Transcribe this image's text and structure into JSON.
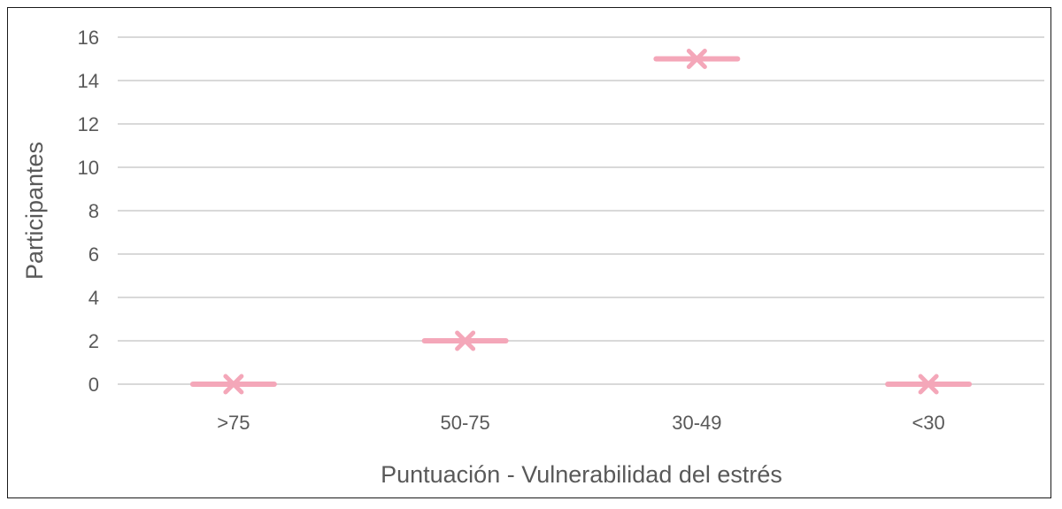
{
  "chart_data": {
    "type": "scatter",
    "marker": "x-with-dash",
    "categories": [
      ">75",
      "50-75",
      "30-49",
      "<30"
    ],
    "values": [
      0,
      2,
      15,
      0
    ],
    "xlabel": "Puntuación - Vulnerabilidad del estrés",
    "ylabel": "Participantes",
    "ylim": [
      0,
      16
    ],
    "yticks": [
      0,
      2,
      4,
      6,
      8,
      10,
      12,
      14,
      16
    ],
    "grid": true,
    "legend": "none",
    "colors": {
      "marker": "#f4a7b9",
      "grid": "#d9d9d9",
      "text": "#595959",
      "border": "#1a1a1a"
    }
  }
}
